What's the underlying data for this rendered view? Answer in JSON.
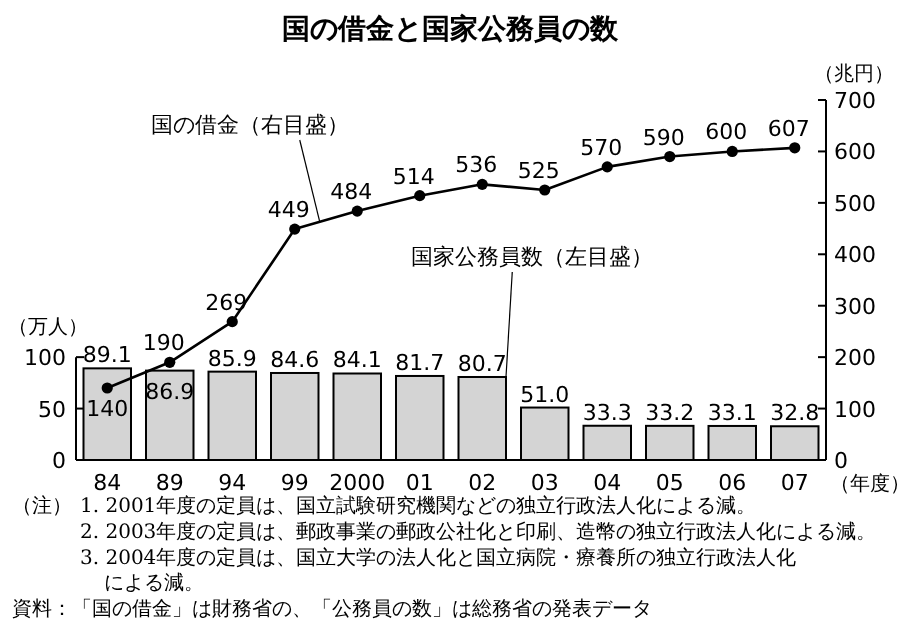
{
  "chart_data": {
    "type": "bar",
    "title": "国の借金と国家公務員の数",
    "xlabel": "（年度）",
    "ylabel": "（万人）",
    "y2label": "（兆円）",
    "categories": [
      "84",
      "89",
      "94",
      "99",
      "2000",
      "01",
      "02",
      "03",
      "04",
      "05",
      "06",
      "07"
    ],
    "series": [
      {
        "name": "国家公務員数（左目盛）",
        "color": "#d4d4d4",
        "values": [
          89.1,
          86.9,
          85.9,
          84.6,
          84.1,
          81.7,
          80.7,
          51.0,
          33.3,
          33.2,
          33.1,
          32.8
        ],
        "value_labels": [
          "89.1",
          "86.9",
          "85.9",
          "84.6",
          "84.1",
          "81.7",
          "80.7",
          "51.0",
          "33.3",
          "33.2",
          "33.1",
          "32.8"
        ]
      },
      {
        "name": "国の借金（右目盛）",
        "type": "line",
        "axis": "y2",
        "color": "#000000",
        "marker": "circle",
        "values": [
          140,
          190,
          269,
          449,
          484,
          514,
          536,
          525,
          570,
          590,
          600,
          607
        ],
        "value_labels": [
          "140",
          "190",
          "269",
          "449",
          "484",
          "514",
          "536",
          "525",
          "570",
          "590",
          "600",
          "607"
        ]
      }
    ],
    "ylim": [
      0,
      350
    ],
    "yticks": [
      0,
      50,
      100
    ],
    "y2lim": [
      0,
      700
    ],
    "y2ticks": [
      0,
      100,
      200,
      300,
      400,
      500,
      600,
      700
    ],
    "grid": false,
    "legend": false,
    "annotations": [
      "（注）",
      "1. 2001年度の定員は、国立試験研究機関などの独立行政法人化による減。",
      "2. 2003年度の定員は、郵政事業の郵政公社化と印刷、造幣の独立行政法人化による減。",
      "3. 2004年度の定員は、国立大学の法人化と国立病院・療養所の独立行政法人化による減。",
      "資料：「国の借金」は財務省の、「公務員の数」は総務省の発表データ"
    ]
  }
}
